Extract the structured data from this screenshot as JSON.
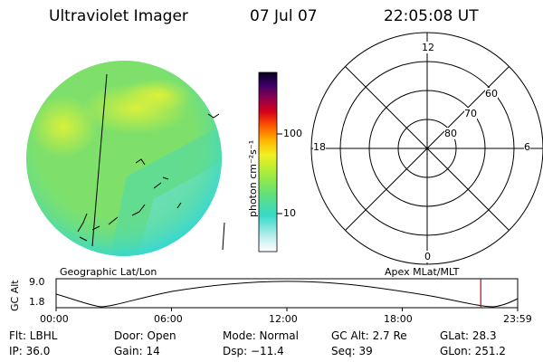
{
  "header": {
    "instrument": "Ultraviolet Imager",
    "date": "07 Jul 07",
    "time": "22:05:08 UT"
  },
  "colorbar": {
    "unit_label": "photon cm⁻²s⁻¹",
    "ticks": [
      "100",
      "10"
    ]
  },
  "polar_plot": {
    "clock_labels": [
      "12",
      "18",
      "6",
      "0"
    ],
    "lat_labels": [
      "60",
      "70",
      "80"
    ]
  },
  "orbit_plot": {
    "left_label": "Geographic Lat/Lon",
    "right_label": "Apex MLat/MLT",
    "y_axis_label": "GC Alt",
    "y_ticks": [
      "9.0",
      "1.8"
    ],
    "x_ticks": [
      "00:00",
      "06:00",
      "12:00",
      "18:00",
      "23:59"
    ],
    "current_marker_hour": 22.08
  },
  "info": {
    "flt": "Flt: LBHL",
    "door": "Door: Open",
    "mode": "Mode: Normal",
    "gc_alt": "GC Alt: 2.7 Re",
    "glat": "GLat:  28.3",
    "ip": "IP: 36.0",
    "gain": "Gain: 14",
    "dsp": "Dsp:  −11.4",
    "seq": "Seq: 39",
    "glon": "GLon: 251.2"
  },
  "colors": {
    "image_base": "#7ee06a",
    "image_bright": "#d8f23a",
    "image_edge": "#3fd8c8",
    "marker": "#cc0000"
  }
}
